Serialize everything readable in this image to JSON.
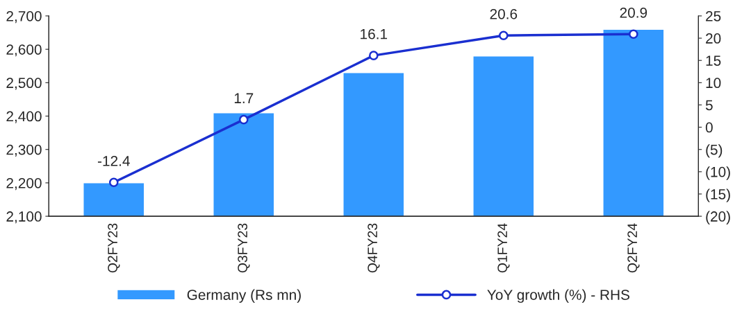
{
  "chart_data": {
    "type": "bar",
    "categories": [
      "Q2FY23",
      "Q3FY23",
      "Q4FY23",
      "Q1FY24",
      "Q2FY24"
    ],
    "series": [
      {
        "name": "Germany (Rs mn)",
        "color": "#3399ff",
        "values": [
          2200,
          2410,
          2530,
          2580,
          2660
        ]
      },
      {
        "name": "YoY growth (%) - RHS",
        "type": "line",
        "axis": "y2",
        "color": "#1a2fd0",
        "marker": "circle",
        "line_style": "solid",
        "values": [
          -12.4,
          1.7,
          16.1,
          20.6,
          20.9
        ],
        "value_labels": [
          "-12.4",
          "1.7",
          "16.1",
          "20.6",
          "20.9"
        ]
      }
    ],
    "ylim": [
      2100,
      2700
    ],
    "yticks": [
      {
        "value": 2100,
        "label": "2,100"
      },
      {
        "value": 2200,
        "label": "2,200"
      },
      {
        "value": 2300,
        "label": "2,300"
      },
      {
        "value": 2400,
        "label": "2,400"
      },
      {
        "value": 2500,
        "label": "2,500"
      },
      {
        "value": 2600,
        "label": "2,600"
      },
      {
        "value": 2700,
        "label": "2,700"
      }
    ],
    "y2lim": [
      -20,
      25
    ],
    "y2ticks": [
      {
        "value": -20,
        "label": "(20)"
      },
      {
        "value": -15,
        "label": "(15)"
      },
      {
        "value": -10,
        "label": "(10)"
      },
      {
        "value": -5,
        "label": "(5)"
      },
      0,
      5,
      10,
      15,
      20,
      25
    ],
    "legend": "bottom",
    "grid": false
  }
}
